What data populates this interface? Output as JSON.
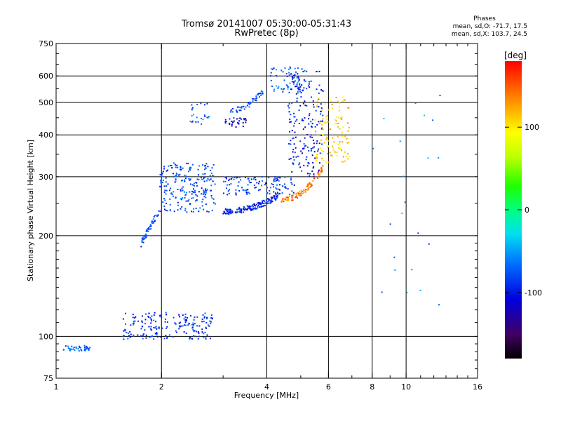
{
  "chart_data": {
    "type": "scatter",
    "title": "Tromsø 20141007 05:30:00-05:31:43",
    "subtitle": "RwPretec (8p)",
    "xlabel": "Frequency [MHz]",
    "ylabel": "Stationary phase Virtual Height [km]",
    "xscale": "log",
    "yscale": "log",
    "xlim": [
      1,
      16
    ],
    "ylim": [
      75,
      750
    ],
    "xticks": [
      1,
      2,
      4,
      6,
      8,
      10,
      16
    ],
    "yticks": [
      75,
      100,
      200,
      300,
      400,
      500,
      600,
      750
    ],
    "grid": true,
    "colorbar": {
      "label": "[deg]",
      "range": [
        -180,
        180
      ],
      "ticks": [
        100,
        0,
        -100
      ],
      "header": "Phases",
      "stats": [
        "mean, sd,O: -71.7, 17.5",
        "mean, sd,X: 103.7, 24.5"
      ]
    },
    "clusters": [
      {
        "f0": 1.05,
        "f1": 1.25,
        "h0": 91,
        "h1": 93,
        "phase": -70,
        "n": 45,
        "kind": "band"
      },
      {
        "f0": 1.55,
        "f1": 2.8,
        "h0": 98,
        "h1": 118,
        "phase": -90,
        "n": 190,
        "kind": "cloud"
      },
      {
        "f0": 1.75,
        "f1": 1.98,
        "h0": 190,
        "h1": 240,
        "phase": -75,
        "n": 45,
        "kind": "rise"
      },
      {
        "f0": 1.98,
        "f1": 2.85,
        "h0": 235,
        "h1": 330,
        "phase": -80,
        "n": 220,
        "kind": "cloud"
      },
      {
        "f0": 2.4,
        "f1": 2.75,
        "h0": 430,
        "h1": 500,
        "phase": -70,
        "n": 25,
        "kind": "cloud"
      },
      {
        "f0": 3.0,
        "f1": 4.3,
        "h0": 236,
        "h1": 262,
        "phase": -95,
        "n": 150,
        "kind": "trace"
      },
      {
        "f0": 3.0,
        "f1": 4.8,
        "h0": 265,
        "h1": 300,
        "phase": -85,
        "n": 120,
        "kind": "cloud"
      },
      {
        "f0": 3.1,
        "f1": 3.9,
        "h0": 470,
        "h1": 540,
        "phase": -80,
        "n": 50,
        "kind": "trace"
      },
      {
        "f0": 3.0,
        "f1": 3.5,
        "h0": 420,
        "h1": 450,
        "phase": -110,
        "n": 30,
        "kind": "cloud"
      },
      {
        "f0": 4.4,
        "f1": 5.8,
        "h0": 255,
        "h1": 320,
        "phase": 140,
        "n": 90,
        "kind": "trace"
      },
      {
        "f0": 4.1,
        "f1": 5.2,
        "h0": 530,
        "h1": 640,
        "phase": -70,
        "n": 70,
        "kind": "cloud"
      },
      {
        "f0": 4.6,
        "f1": 5.8,
        "h0": 300,
        "h1": 620,
        "phase": -100,
        "n": 180,
        "kind": "cloud"
      },
      {
        "f0": 5.5,
        "f1": 6.9,
        "h0": 330,
        "h1": 520,
        "phase": 110,
        "n": 120,
        "kind": "cloud"
      },
      {
        "f0": 8.0,
        "f1": 13.0,
        "h0": 120,
        "h1": 600,
        "phase": -60,
        "n": 22,
        "kind": "cloud"
      }
    ]
  }
}
